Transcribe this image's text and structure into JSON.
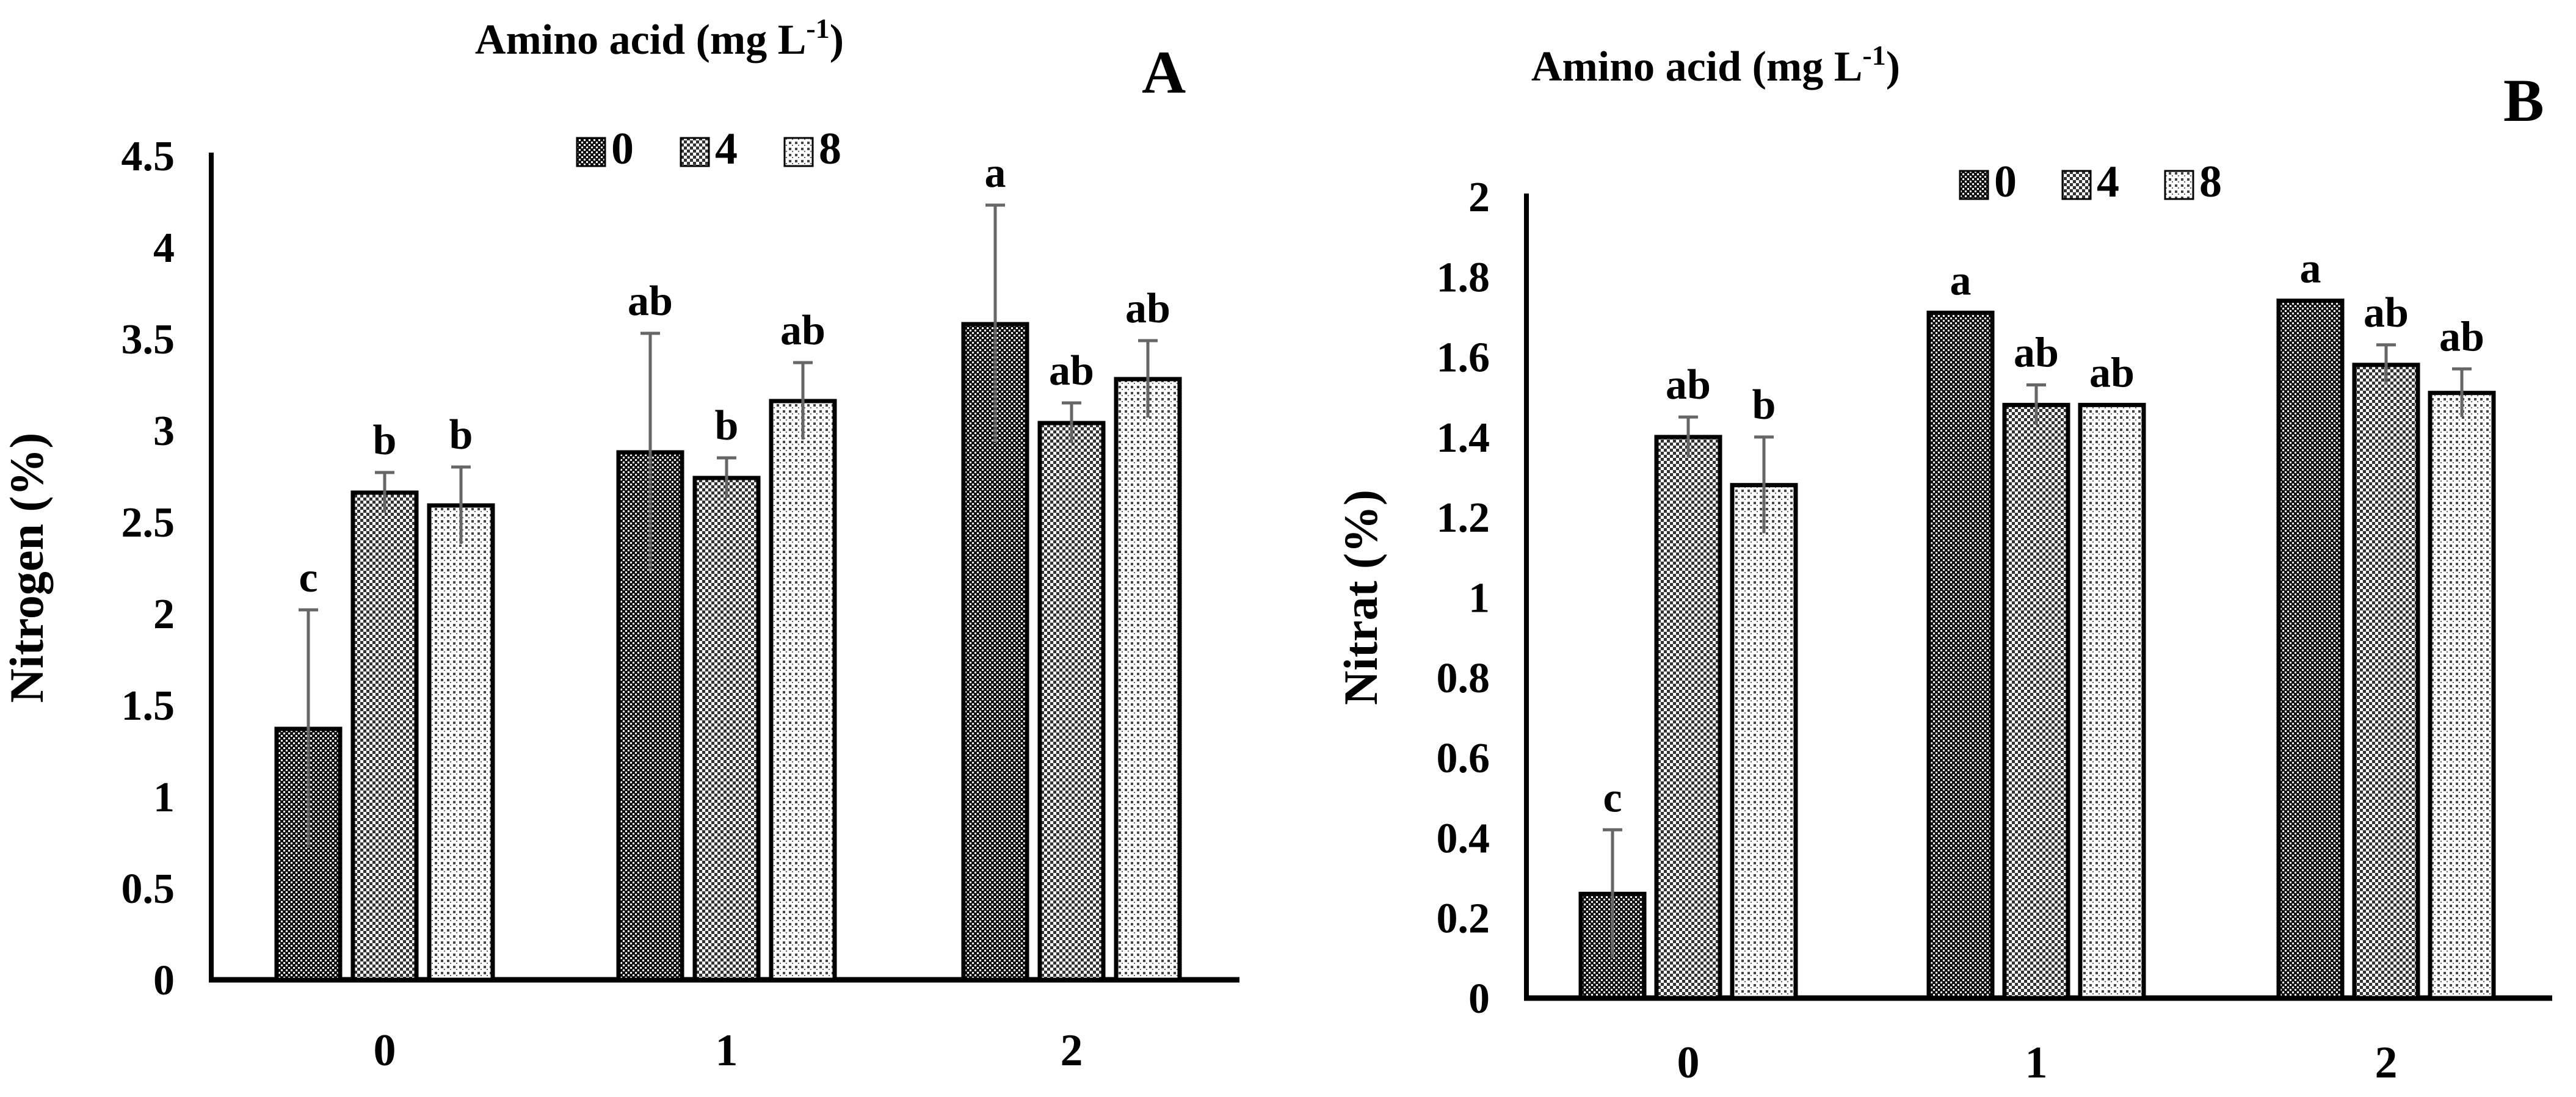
{
  "chart_data": [
    {
      "type": "bar",
      "panel_label": "A",
      "title": "Amino acid (mg L",
      "title_superscript": "-1",
      "title_close": ")",
      "xlabel": "",
      "ylabel": "Nitrogen (%)",
      "ylim": [
        0,
        4.5
      ],
      "yticks": [
        "0",
        "0.5",
        "1",
        "1.5",
        "2",
        "2.5",
        "3",
        "3.5",
        "4",
        "4.5"
      ],
      "categories": [
        "0",
        "1",
        "2"
      ],
      "legend_position": "top-center",
      "series": [
        {
          "name": "0",
          "pattern": "dense",
          "values": [
            1.37,
            2.88,
            3.58
          ],
          "errors": [
            0.65,
            0.65,
            0.65
          ],
          "letters": [
            "c",
            "ab",
            "a"
          ]
        },
        {
          "name": "4",
          "pattern": "checker",
          "values": [
            2.66,
            2.74,
            3.04
          ],
          "errors": [
            0.11,
            0.11,
            0.11
          ],
          "letters": [
            "b",
            "b",
            "ab"
          ]
        },
        {
          "name": "8",
          "pattern": "dots",
          "values": [
            2.59,
            3.16,
            3.28
          ],
          "errors": [
            0.21,
            0.21,
            0.21
          ],
          "letters": [
            "b",
            "ab",
            "ab"
          ]
        }
      ]
    },
    {
      "type": "bar",
      "panel_label": "B",
      "title": "Amino acid (mg L",
      "title_superscript": "-1",
      "title_close": ")",
      "xlabel": "",
      "ylabel": "Nitrat (%)",
      "ylim": [
        0,
        2
      ],
      "yticks": [
        "0",
        "0.2",
        "0.4",
        "0.6",
        "0.8",
        "1",
        "1.2",
        "1.4",
        "1.6",
        "1.8",
        "2"
      ],
      "categories": [
        "0",
        "1",
        "2"
      ],
      "legend_position": "top-center",
      "series": [
        {
          "name": "0",
          "pattern": "dense",
          "values": [
            0.26,
            1.71,
            1.74
          ],
          "errors": [
            0.16,
            0,
            0
          ],
          "letters": [
            "c",
            "a",
            "a"
          ]
        },
        {
          "name": "4",
          "pattern": "checker",
          "values": [
            1.4,
            1.48,
            1.58
          ],
          "errors": [
            0.05,
            0.05,
            0.05
          ],
          "letters": [
            "ab",
            "ab",
            "ab"
          ]
        },
        {
          "name": "8",
          "pattern": "dots",
          "values": [
            1.28,
            1.48,
            1.51
          ],
          "errors": [
            0.12,
            0,
            0.06
          ],
          "letters": [
            "b",
            "ab",
            "ab"
          ]
        }
      ]
    }
  ]
}
